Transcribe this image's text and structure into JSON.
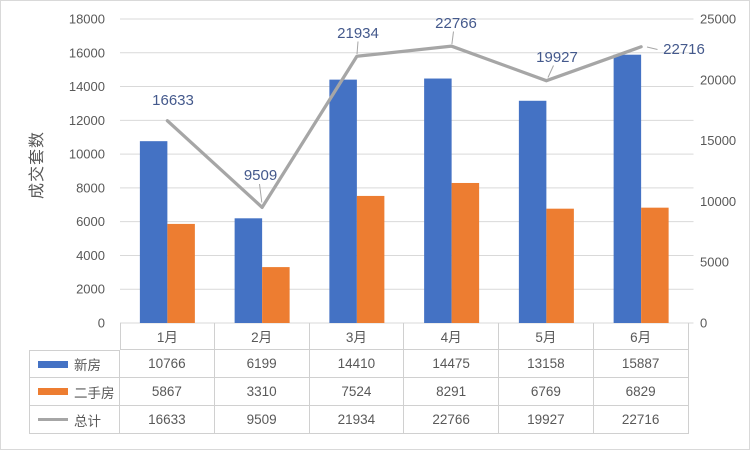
{
  "chart_data": {
    "type": "combo",
    "categories": [
      "1月",
      "2月",
      "3月",
      "4月",
      "5月",
      "6月"
    ],
    "series": [
      {
        "key": "new-homes",
        "name": "新房",
        "chart": "bar",
        "axis": "left",
        "color": "#4472C4",
        "values": [
          10766,
          6199,
          14410,
          14475,
          13158,
          15887
        ]
      },
      {
        "key": "resale-homes",
        "name": "二手房",
        "chart": "bar",
        "axis": "left",
        "color": "#ED7D31",
        "values": [
          5867,
          3310,
          7524,
          8291,
          6769,
          6829
        ]
      },
      {
        "key": "total",
        "name": "总计",
        "chart": "line",
        "axis": "right",
        "color": "#A6A6A6",
        "values": [
          16633,
          9509,
          21934,
          22766,
          19927,
          22716
        ],
        "has_data_labels": true
      }
    ],
    "left_axis": {
      "title": "成交套数",
      "min": 0,
      "max": 18000,
      "step": 2000,
      "ticks": [
        0,
        2000,
        4000,
        6000,
        8000,
        10000,
        12000,
        14000,
        16000,
        18000
      ]
    },
    "right_axis": {
      "min": 0,
      "max": 25000,
      "step": 5000,
      "ticks": [
        0,
        5000,
        10000,
        15000,
        20000,
        25000
      ]
    },
    "grid": true,
    "legend_position": "data-table-left",
    "data_table": true
  },
  "ui": {
    "background": "#FFFFFF",
    "canvas_border_color": "#D9D9D9",
    "grid_color": "#D9D9D9",
    "table_border_color": "#D0D0D0",
    "text_color": "#595959",
    "data_label_color": "#44598C"
  }
}
